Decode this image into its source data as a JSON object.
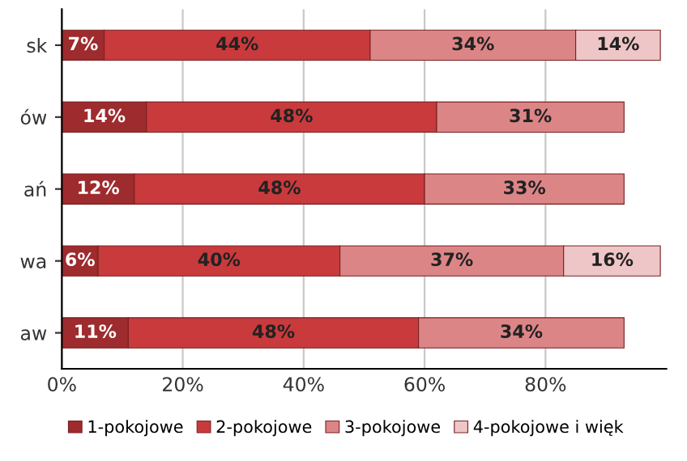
{
  "chart_data": {
    "type": "bar",
    "orientation": "horizontal",
    "stacked": true,
    "categories": [
      "sk",
      "ów",
      "ań",
      "wa",
      "aw"
    ],
    "series": [
      {
        "name": "1-pokojowe",
        "color": "#9e2b2d",
        "values": [
          7,
          14,
          12,
          6,
          11
        ],
        "value_labels": [
          "7%",
          "14%",
          "12%",
          "6%",
          "11%"
        ]
      },
      {
        "name": "2-pokojowe",
        "color": "#c93a3c",
        "values": [
          44,
          48,
          48,
          40,
          48
        ],
        "value_labels": [
          "44%",
          "48%",
          "48%",
          "40%",
          "48%"
        ]
      },
      {
        "name": "3-pokojowe",
        "color": "#dc8587",
        "values": [
          34,
          31,
          33,
          37,
          34
        ],
        "value_labels": [
          "34%",
          "31%",
          "33%",
          "37%",
          "34%"
        ]
      },
      {
        "name": "4-pokojowe i więk",
        "color": "#efc6c7",
        "values": [
          14,
          null,
          null,
          16,
          null
        ],
        "value_labels": [
          "14%",
          null,
          null,
          "16%",
          null
        ]
      }
    ],
    "xlim": [
      0,
      100
    ],
    "xticks": [
      {
        "value": 0,
        "label": "0%"
      },
      {
        "value": 20,
        "label": "20%"
      },
      {
        "value": 40,
        "label": "40%"
      },
      {
        "value": 60,
        "label": "60%"
      },
      {
        "value": 80,
        "label": "80%"
      }
    ],
    "grid": "x",
    "legend": "bottom"
  }
}
